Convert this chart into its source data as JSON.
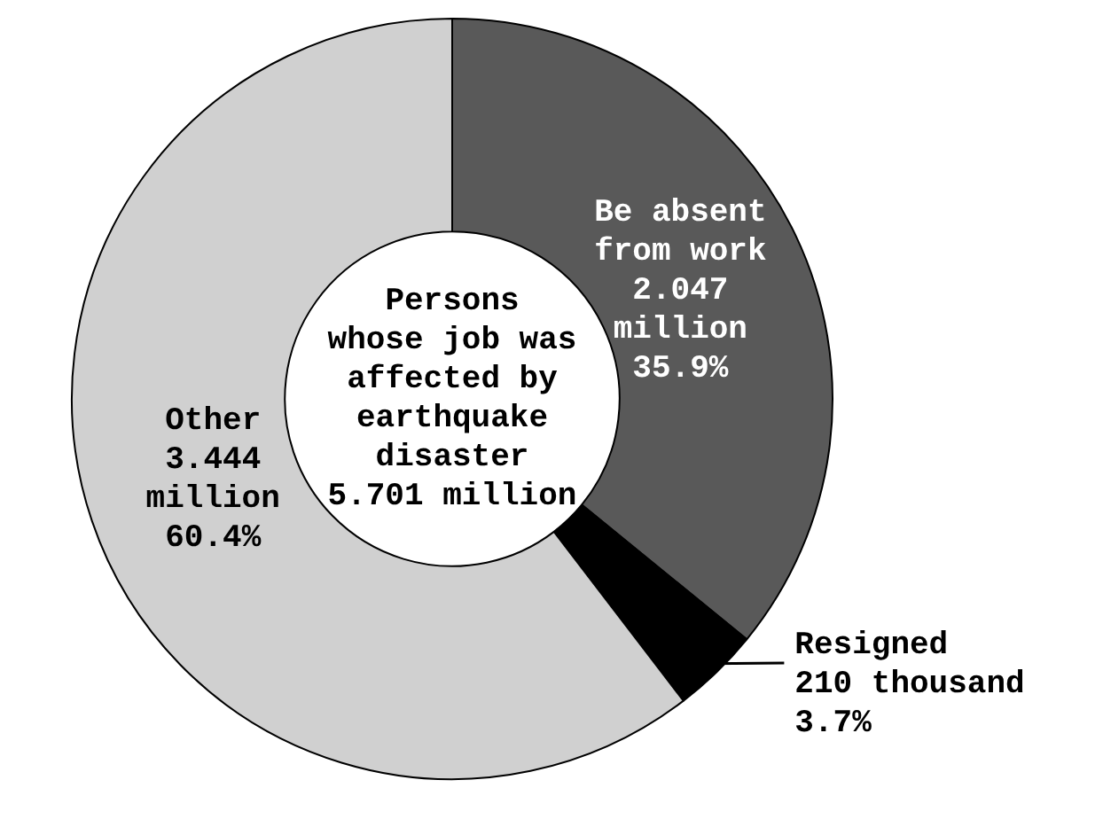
{
  "chart_data": {
    "type": "donut",
    "categories": [
      "Be absent\nfrom work",
      "Resigned",
      "Other"
    ],
    "values": [
      35.9,
      3.7,
      60.4
    ],
    "value_labels": [
      "2.047\nmillion\n35.9%",
      "210 thousand\n3.7%",
      "3.444\nmillion\n60.4%"
    ],
    "colors": [
      "#595959",
      "#000000",
      "#d0d0d0"
    ],
    "annotations": [
      "Persons\nwhose job was\naffected by\nearthquake\ndisaster\n5.701 million"
    ],
    "legend": false
  }
}
